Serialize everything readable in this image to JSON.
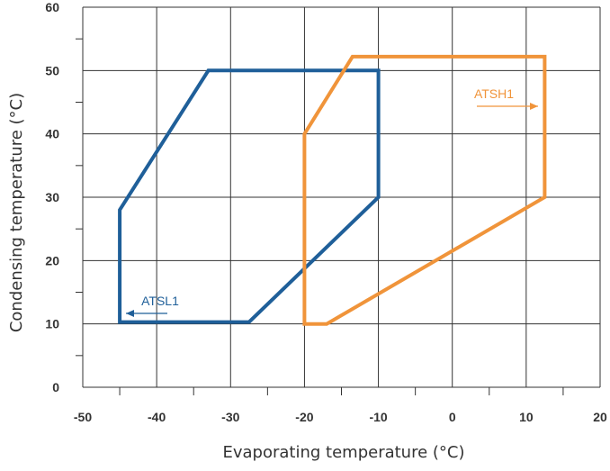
{
  "chart_data": {
    "type": "line",
    "xlabel": "Evaporating temperature (°C)",
    "ylabel": "Condensing temperature (°C)",
    "xlim": [
      -50,
      20
    ],
    "ylim": [
      0,
      60
    ],
    "x_ticks": [
      "-50",
      "-40",
      "-30",
      "-20",
      "-10",
      "0",
      "10",
      "20"
    ],
    "y_ticks": [
      "0",
      "10",
      "20",
      "30",
      "40",
      "50",
      "60"
    ],
    "grid": true,
    "series": [
      {
        "name": "ATSL1",
        "color": "#1f5f99",
        "closed": true,
        "points": [
          {
            "x": -45,
            "y": 10.3
          },
          {
            "x": -45,
            "y": 28
          },
          {
            "x": -33,
            "y": 50
          },
          {
            "x": -10,
            "y": 50
          },
          {
            "x": -10,
            "y": 30
          },
          {
            "x": -27.5,
            "y": 10.3
          }
        ]
      },
      {
        "name": "ATSH1",
        "color": "#f0943a",
        "closed": true,
        "points": [
          {
            "x": -20,
            "y": 10
          },
          {
            "x": -20,
            "y": 40
          },
          {
            "x": -13.5,
            "y": 52.2
          },
          {
            "x": 12.5,
            "y": 52.2
          },
          {
            "x": 12.5,
            "y": 30
          },
          {
            "x": -17,
            "y": 10
          }
        ]
      }
    ]
  }
}
